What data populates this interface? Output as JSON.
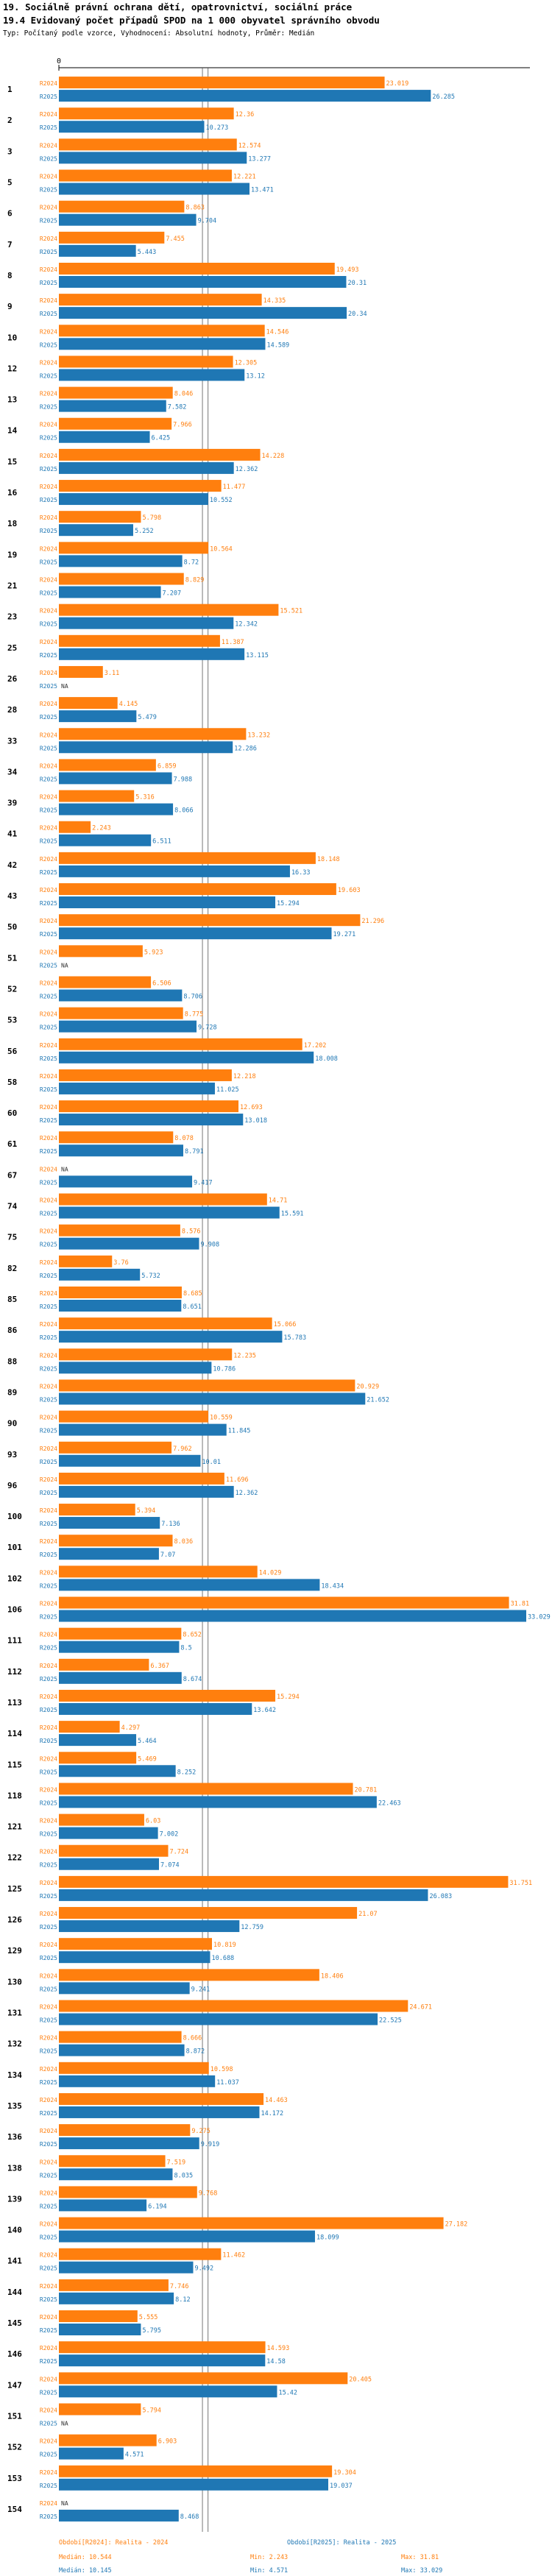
{
  "header": {
    "title_line1": "19. Sociálně právní ochrana dětí, opatrovnictví, sociální práce",
    "title_line2": "19.4 Evidovaný počet případů SPOD na 1 000 obyvatel správního obvodu",
    "subtitle": "Typ: Počítaný podle vzorce, Vyhodnocení: Absolutní hodnoty, Průměr: Medián"
  },
  "colors": {
    "r2024": "#ff7f0e",
    "r2025": "#1f77b4",
    "axis": "#000000",
    "median_line": "#555555"
  },
  "chart_data": {
    "type": "bar",
    "orientation": "horizontal",
    "axis_zero_label": "0",
    "xlim": [
      0,
      33.029
    ],
    "na_label": "NA",
    "series_names": [
      "R2024",
      "R2025"
    ],
    "categories": [
      "1",
      "2",
      "3",
      "5",
      "6",
      "7",
      "8",
      "9",
      "10",
      "12",
      "13",
      "14",
      "15",
      "16",
      "18",
      "19",
      "21",
      "23",
      "25",
      "26",
      "28",
      "33",
      "34",
      "39",
      "41",
      "42",
      "43",
      "50",
      "51",
      "52",
      "53",
      "56",
      "58",
      "60",
      "61",
      "67",
      "74",
      "75",
      "82",
      "85",
      "86",
      "88",
      "89",
      "90",
      "93",
      "96",
      "100",
      "101",
      "102",
      "106",
      "111",
      "112",
      "113",
      "114",
      "115",
      "118",
      "121",
      "122",
      "125",
      "126",
      "129",
      "130",
      "131",
      "132",
      "134",
      "135",
      "136",
      "138",
      "139",
      "140",
      "141",
      "144",
      "145",
      "146",
      "147",
      "151",
      "152",
      "153",
      "154"
    ],
    "series": [
      {
        "name": "R2024",
        "values": [
          "23.019",
          "12.36",
          "12.574",
          "12.221",
          "8.863",
          "7.455",
          "19.493",
          "14.335",
          "14.546",
          "12.305",
          "8.046",
          "7.966",
          "14.228",
          "11.477",
          "5.798",
          "10.564",
          "8.829",
          "15.521",
          "11.387",
          "3.11",
          "4.145",
          "13.232",
          "6.859",
          "5.316",
          "2.243",
          "18.148",
          "19.603",
          "21.296",
          "5.923",
          "6.506",
          "8.775",
          "17.202",
          "12.218",
          "12.693",
          "8.078",
          null,
          "14.71",
          "8.576",
          "3.76",
          "8.685",
          "15.066",
          "12.235",
          "20.929",
          "10.559",
          "7.962",
          "11.696",
          "5.394",
          "8.036",
          "14.029",
          "31.81",
          "8.652",
          "6.367",
          "15.294",
          "4.297",
          "5.469",
          "20.781",
          "6.03",
          "7.724",
          "31.751",
          "21.07",
          "10.819",
          "18.406",
          "24.671",
          "8.666",
          "10.598",
          "14.463",
          "9.275",
          "7.519",
          "9.768",
          "27.182",
          "11.462",
          "7.746",
          "5.555",
          "14.593",
          "20.405",
          "5.794",
          "6.903",
          "19.304",
          null
        ]
      },
      {
        "name": "R2025",
        "values": [
          "26.285",
          "10.273",
          "13.277",
          "13.471",
          "9.704",
          "5.443",
          "20.31",
          "20.34",
          "14.589",
          "13.12",
          "7.582",
          "6.425",
          "12.362",
          "10.552",
          "5.252",
          "8.72",
          "7.207",
          "12.342",
          "13.115",
          null,
          "5.479",
          "12.286",
          "7.988",
          "8.066",
          "6.511",
          "16.33",
          "15.294",
          "19.271",
          null,
          "8.706",
          "9.728",
          "18.008",
          "11.025",
          "13.018",
          "8.791",
          "9.417",
          "15.591",
          "9.908",
          "5.732",
          "8.651",
          "15.783",
          "10.786",
          "21.652",
          "11.845",
          "10.01",
          "12.362",
          "7.136",
          "7.07",
          "18.434",
          "33.029",
          "8.5",
          "8.674",
          "13.642",
          "5.464",
          "8.252",
          "22.463",
          "7.002",
          "7.074",
          "26.083",
          "12.759",
          "10.688",
          "9.241",
          "22.525",
          "8.872",
          "11.037",
          "14.172",
          "9.919",
          "8.035",
          "6.194",
          "18.099",
          "9.492",
          "8.12",
          "5.795",
          "14.58",
          "15.42",
          null,
          "4.571",
          "19.037",
          "8.468"
        ]
      }
    ]
  },
  "footer": {
    "col1_title": "Období[R2024]: Realita - 2024",
    "col1_median": "Medián: 10.544",
    "col1_min": "Min: 2.243",
    "col1_max": "Max: 31.81",
    "col2_title": "Období[R2025]: Realita - 2025",
    "col2_median": "Medián: 10.145",
    "col2_min": "Min: 4.571",
    "col2_max": "Max: 33.029"
  }
}
